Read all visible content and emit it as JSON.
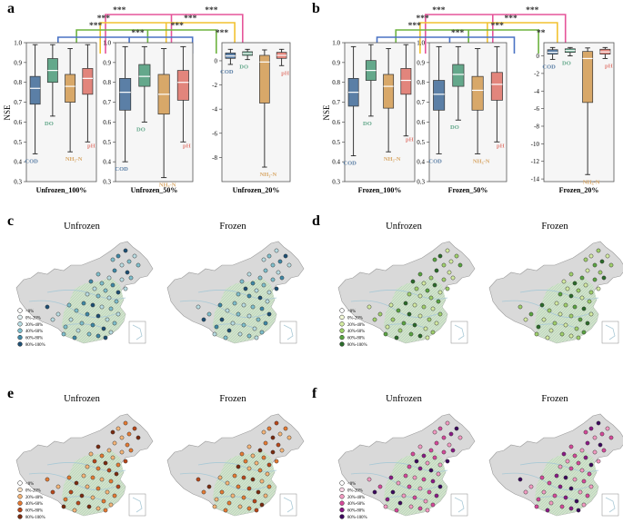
{
  "colors": {
    "COD": "#5b7fa6",
    "DO": "#64a88b",
    "NH3N": "#d8a869",
    "pH": "#e2857c",
    "land": "#d9d9d9",
    "river": "#a9c9d6",
    "sig_blue": "#4a72c4",
    "sig_green": "#6db33f",
    "sig_yellow": "#f2c230",
    "sig_pink": "#e5559a"
  },
  "chart_data": [
    {
      "panel": "a",
      "type": "box",
      "ylabel": "NSE",
      "groups": [
        {
          "label": "Unfrozen_100%",
          "ylim": [
            0.3,
            1.0
          ],
          "yticks": [
            "0.3",
            "0.4",
            "0.5",
            "0.6",
            "0.7",
            "0.8",
            "0.9",
            "1.0"
          ],
          "boxes": [
            {
              "name": "COD",
              "label": "COD",
              "whisker_low": 0.44,
              "q1": 0.69,
              "median": 0.77,
              "q3": 0.83,
              "whisker_high": 0.99
            },
            {
              "name": "DO",
              "label": "DO",
              "whisker_low": 0.63,
              "q1": 0.8,
              "median": 0.86,
              "q3": 0.92,
              "whisker_high": 0.99
            },
            {
              "name": "NH3N",
              "label": "NH₃-N",
              "whisker_low": 0.45,
              "q1": 0.7,
              "median": 0.78,
              "q3": 0.84,
              "whisker_high": 0.97
            },
            {
              "name": "pH",
              "label": "pH",
              "whisker_low": 0.5,
              "q1": 0.74,
              "median": 0.82,
              "q3": 0.87,
              "whisker_high": 0.99
            }
          ]
        },
        {
          "label": "Unfrozen_50%",
          "ylim": [
            0.3,
            1.0
          ],
          "yticks": [
            "0.3",
            "0.4",
            "0.5",
            "0.6",
            "0.7",
            "0.8",
            "0.9",
            "1.0"
          ],
          "boxes": [
            {
              "name": "COD",
              "label": "COD",
              "whisker_low": 0.4,
              "q1": 0.66,
              "median": 0.75,
              "q3": 0.82,
              "whisker_high": 0.98
            },
            {
              "name": "DO",
              "label": "DO",
              "whisker_low": 0.6,
              "q1": 0.78,
              "median": 0.83,
              "q3": 0.89,
              "whisker_high": 0.98
            },
            {
              "name": "NH3N",
              "label": "NH₃-N",
              "whisker_low": 0.32,
              "q1": 0.64,
              "median": 0.74,
              "q3": 0.84,
              "whisker_high": 0.97
            },
            {
              "name": "pH",
              "label": "pH",
              "whisker_low": 0.5,
              "q1": 0.71,
              "median": 0.8,
              "q3": 0.86,
              "whisker_high": 0.98
            }
          ]
        },
        {
          "label": "Unfrozen_20%",
          "ylim": [
            -10,
            1.5
          ],
          "yticks": [
            "-8",
            "-6",
            "-4",
            "-2",
            "0"
          ],
          "boxes": [
            {
              "name": "COD",
              "label": "COD",
              "whisker_low": -0.3,
              "q1": 0.2,
              "median": 0.4,
              "q3": 0.65,
              "whisker_high": 0.95
            },
            {
              "name": "DO",
              "label": "DO",
              "whisker_low": 0.1,
              "q1": 0.45,
              "median": 0.6,
              "q3": 0.75,
              "whisker_high": 0.95
            },
            {
              "name": "NH3N",
              "label": "NH₃-N",
              "whisker_low": -8.8,
              "q1": -3.5,
              "median": -0.1,
              "q3": 0.45,
              "whisker_high": 0.9
            },
            {
              "name": "pH",
              "label": "pH",
              "whisker_low": -0.4,
              "q1": 0.2,
              "median": 0.45,
              "q3": 0.7,
              "whisker_high": 0.95
            }
          ]
        }
      ],
      "significance": [
        "***",
        "***",
        "***",
        "***",
        "***",
        "***",
        "***",
        "***"
      ]
    },
    {
      "panel": "b",
      "type": "box",
      "ylabel": "NSE",
      "groups": [
        {
          "label": "Frozen_100%",
          "ylim": [
            0.3,
            1.0
          ],
          "yticks": [
            "0.3",
            "0.4",
            "0.5",
            "0.6",
            "0.7",
            "0.8",
            "0.9",
            "1.0"
          ],
          "boxes": [
            {
              "name": "COD",
              "label": "COD",
              "whisker_low": 0.43,
              "q1": 0.68,
              "median": 0.75,
              "q3": 0.82,
              "whisker_high": 0.98
            },
            {
              "name": "DO",
              "label": "DO",
              "whisker_low": 0.63,
              "q1": 0.81,
              "median": 0.86,
              "q3": 0.91,
              "whisker_high": 0.99
            },
            {
              "name": "NH3N",
              "label": "NH₃-N",
              "whisker_low": 0.45,
              "q1": 0.67,
              "median": 0.78,
              "q3": 0.84,
              "whisker_high": 0.97
            },
            {
              "name": "pH",
              "label": "pH",
              "whisker_low": 0.53,
              "q1": 0.74,
              "median": 0.81,
              "q3": 0.87,
              "whisker_high": 0.99
            }
          ]
        },
        {
          "label": "Frozen_50%",
          "ylim": [
            0.3,
            1.0
          ],
          "yticks": [
            "0.3",
            "0.4",
            "0.5",
            "0.6",
            "0.7",
            "0.8",
            "0.9",
            "1.0"
          ],
          "boxes": [
            {
              "name": "COD",
              "label": "COD",
              "whisker_low": 0.44,
              "q1": 0.66,
              "median": 0.74,
              "q3": 0.81,
              "whisker_high": 0.98
            },
            {
              "name": "DO",
              "label": "DO",
              "whisker_low": 0.61,
              "q1": 0.78,
              "median": 0.84,
              "q3": 0.89,
              "whisker_high": 0.98
            },
            {
              "name": "NH3N",
              "label": "NH₃-N",
              "whisker_low": 0.44,
              "q1": 0.66,
              "median": 0.76,
              "q3": 0.83,
              "whisker_high": 0.97
            },
            {
              "name": "pH",
              "label": "pH",
              "whisker_low": 0.5,
              "q1": 0.71,
              "median": 0.79,
              "q3": 0.85,
              "whisker_high": 0.98
            }
          ]
        },
        {
          "label": "Frozen_20%",
          "ylim": [
            -14.3,
            1.5
          ],
          "yticks": [
            "-14",
            "-12",
            "-10",
            "-8",
            "-6",
            "-4",
            "-2",
            "0"
          ],
          "boxes": [
            {
              "name": "COD",
              "label": "COD",
              "whisker_low": -0.4,
              "q1": 0.2,
              "median": 0.4,
              "q3": 0.7,
              "whisker_high": 0.95
            },
            {
              "name": "DO",
              "label": "DO",
              "whisker_low": 0.0,
              "q1": 0.4,
              "median": 0.6,
              "q3": 0.8,
              "whisker_high": 0.95
            },
            {
              "name": "NH3N",
              "label": "NH₃-N",
              "whisker_low": -13.5,
              "q1": -5.3,
              "median": -0.3,
              "q3": 0.5,
              "whisker_high": 0.9
            },
            {
              "name": "pH",
              "label": "pH",
              "whisker_low": -0.3,
              "q1": 0.2,
              "median": 0.45,
              "q3": 0.75,
              "whisker_high": 0.95
            }
          ]
        }
      ],
      "significance": [
        "***",
        "***",
        "***",
        "***",
        "***",
        "***",
        "***",
        "**"
      ]
    },
    {
      "panel": "c",
      "type": "map",
      "maps": [
        "Unfrozen",
        "Frozen"
      ],
      "legend": [
        "<0%",
        "0%-20%",
        "20%-40%",
        "40%-60%",
        "60%-80%",
        "80%-100%"
      ],
      "palette": [
        "#ffffff",
        "#e4f1f3",
        "#b9dde3",
        "#7fbfcd",
        "#3f88a6",
        "#1d4f74"
      ]
    },
    {
      "panel": "d",
      "type": "map",
      "maps": [
        "Unfrozen",
        "Frozen"
      ],
      "legend": [
        "<0%",
        "0%-20%",
        "20%-40%",
        "40%-60%",
        "60%-80%",
        "80%-100%"
      ],
      "palette": [
        "#ffffff",
        "#f4f9d8",
        "#d3eaa1",
        "#9fcf6b",
        "#5aa441",
        "#2b6b2a"
      ]
    },
    {
      "panel": "e",
      "type": "map",
      "maps": [
        "Unfrozen",
        "Frozen"
      ],
      "legend": [
        "<0%",
        "0%-20%",
        "20%-40%",
        "40%-60%",
        "60%-80%",
        "80%-100%"
      ],
      "palette": [
        "#ffffff",
        "#fbe2c6",
        "#f5b578",
        "#e57a33",
        "#b8471a",
        "#7a2b10"
      ]
    },
    {
      "panel": "f",
      "type": "map",
      "maps": [
        "Unfrozen",
        "Frozen"
      ],
      "legend": [
        "<0%",
        "0%-20%",
        "20%-40%",
        "40%-60%",
        "60%-80%",
        "80%-100%"
      ],
      "palette": [
        "#ffffff",
        "#fad6e6",
        "#f39ac2",
        "#d5499a",
        "#8b1a86",
        "#3d0a5e"
      ]
    }
  ]
}
